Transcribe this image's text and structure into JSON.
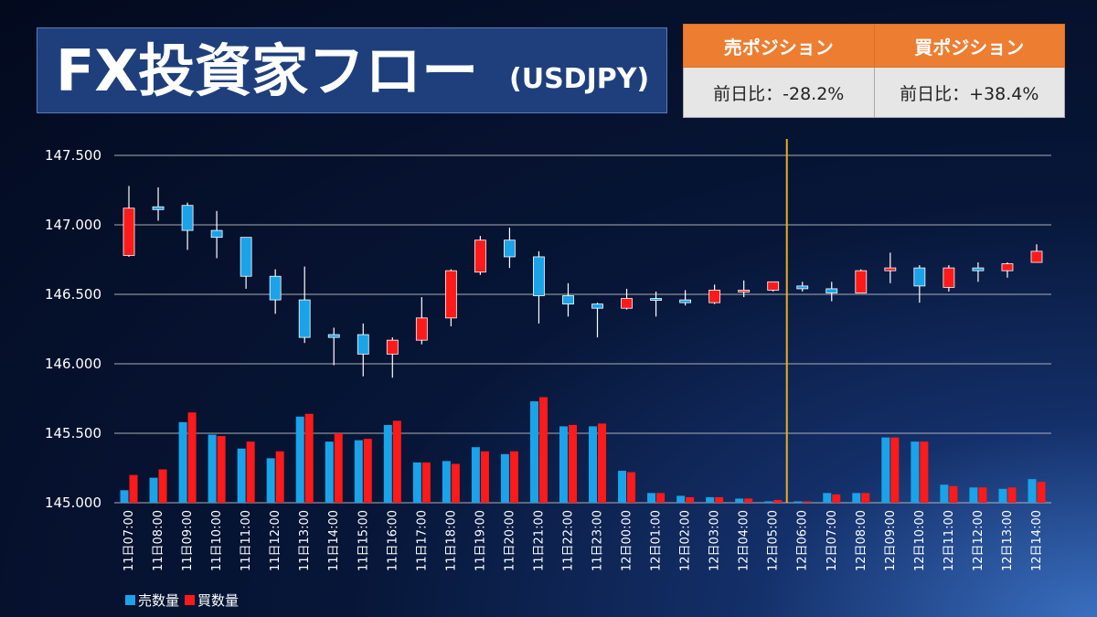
{
  "title": {
    "main": "FX投資家フロー",
    "sub": "(USDJPY)"
  },
  "positions": {
    "sell": {
      "header": "売ポジション",
      "change": "前日比：-28.2%"
    },
    "buy": {
      "header": "買ポジション",
      "change": "前日比：+38.4%"
    }
  },
  "legend": {
    "sell": "売数量",
    "buy": "買数量"
  },
  "colors": {
    "sell": "#1aa3e8",
    "buy": "#ff1a1a",
    "up_candle": "#ff1a1a",
    "down_candle": "#1aa3e8",
    "marker_line": "#e8b020",
    "grid": "#c8c8c8"
  },
  "chart_data": {
    "type": "candlestick+bar",
    "y_ticks": [
      "147.500",
      "147.000",
      "146.500",
      "146.000",
      "145.500",
      "145.000"
    ],
    "ylim": [
      145.0,
      147.5
    ],
    "vertical_marker_after": "12日05:00",
    "categories": [
      "11日07:00",
      "11日08:00",
      "11日09:00",
      "11日10:00",
      "11日11:00",
      "11日12:00",
      "11日13:00",
      "11日14:00",
      "11日15:00",
      "11日16:00",
      "11日17:00",
      "11日18:00",
      "11日19:00",
      "11日20:00",
      "11日21:00",
      "11日22:00",
      "11日23:00",
      "12日00:00",
      "12日01:00",
      "12日02:00",
      "12日03:00",
      "12日04:00",
      "12日05:00",
      "12日06:00",
      "12日07:00",
      "12日08:00",
      "12日09:00",
      "12日10:00",
      "12日11:00",
      "12日12:00",
      "12日13:00",
      "12日14:00"
    ],
    "ohlc": [
      [
        146.78,
        147.28,
        146.77,
        147.12
      ],
      [
        147.13,
        147.27,
        147.03,
        147.11
      ],
      [
        147.14,
        147.16,
        146.82,
        146.96
      ],
      [
        146.96,
        147.1,
        146.76,
        146.91
      ],
      [
        146.91,
        146.91,
        146.54,
        146.63
      ],
      [
        146.63,
        146.68,
        146.36,
        146.46
      ],
      [
        146.46,
        146.7,
        146.15,
        146.19
      ],
      [
        146.21,
        146.26,
        145.99,
        146.19
      ],
      [
        146.21,
        146.29,
        145.91,
        146.07
      ],
      [
        146.07,
        146.19,
        145.9,
        146.17
      ],
      [
        146.17,
        146.48,
        146.14,
        146.33
      ],
      [
        146.33,
        146.68,
        146.27,
        146.67
      ],
      [
        146.66,
        146.92,
        146.64,
        146.89
      ],
      [
        146.89,
        146.98,
        146.69,
        146.77
      ],
      [
        146.77,
        146.81,
        146.29,
        146.49
      ],
      [
        146.49,
        146.58,
        146.34,
        146.43
      ],
      [
        146.43,
        146.44,
        146.19,
        146.4
      ],
      [
        146.4,
        146.54,
        146.39,
        146.47
      ],
      [
        146.47,
        146.52,
        146.34,
        146.46
      ],
      [
        146.46,
        146.53,
        146.42,
        146.44
      ],
      [
        146.44,
        146.57,
        146.43,
        146.53
      ],
      [
        146.53,
        146.6,
        146.48,
        146.53
      ],
      [
        146.53,
        146.59,
        146.52,
        146.59
      ],
      [
        146.56,
        146.59,
        146.52,
        146.54
      ],
      [
        146.54,
        146.59,
        146.45,
        146.51
      ],
      [
        146.51,
        146.68,
        146.51,
        146.67
      ],
      [
        146.67,
        146.8,
        146.58,
        146.69
      ],
      [
        146.69,
        146.71,
        146.44,
        146.56
      ],
      [
        146.55,
        146.71,
        146.52,
        146.69
      ],
      [
        146.69,
        146.73,
        146.59,
        146.67
      ],
      [
        146.67,
        146.73,
        146.62,
        146.72
      ],
      [
        146.73,
        146.86,
        146.73,
        146.81
      ]
    ],
    "series": [
      {
        "name": "売数量",
        "values": [
          0.09,
          0.18,
          0.58,
          0.49,
          0.39,
          0.32,
          0.62,
          0.44,
          0.45,
          0.56,
          0.29,
          0.3,
          0.4,
          0.35,
          0.73,
          0.55,
          0.55,
          0.23,
          0.07,
          0.05,
          0.04,
          0.03,
          0.01,
          0.01,
          0.07,
          0.07,
          0.47,
          0.44,
          0.13,
          0.11,
          0.1,
          0.17
        ]
      },
      {
        "name": "買数量",
        "values": [
          0.2,
          0.24,
          0.65,
          0.48,
          0.44,
          0.37,
          0.64,
          0.5,
          0.46,
          0.59,
          0.29,
          0.28,
          0.37,
          0.37,
          0.76,
          0.56,
          0.57,
          0.22,
          0.07,
          0.04,
          0.04,
          0.03,
          0.02,
          0.01,
          0.06,
          0.07,
          0.47,
          0.44,
          0.12,
          0.11,
          0.11,
          0.15
        ]
      }
    ],
    "volume_unit": "relative, plotted on price scale above 145.000"
  }
}
